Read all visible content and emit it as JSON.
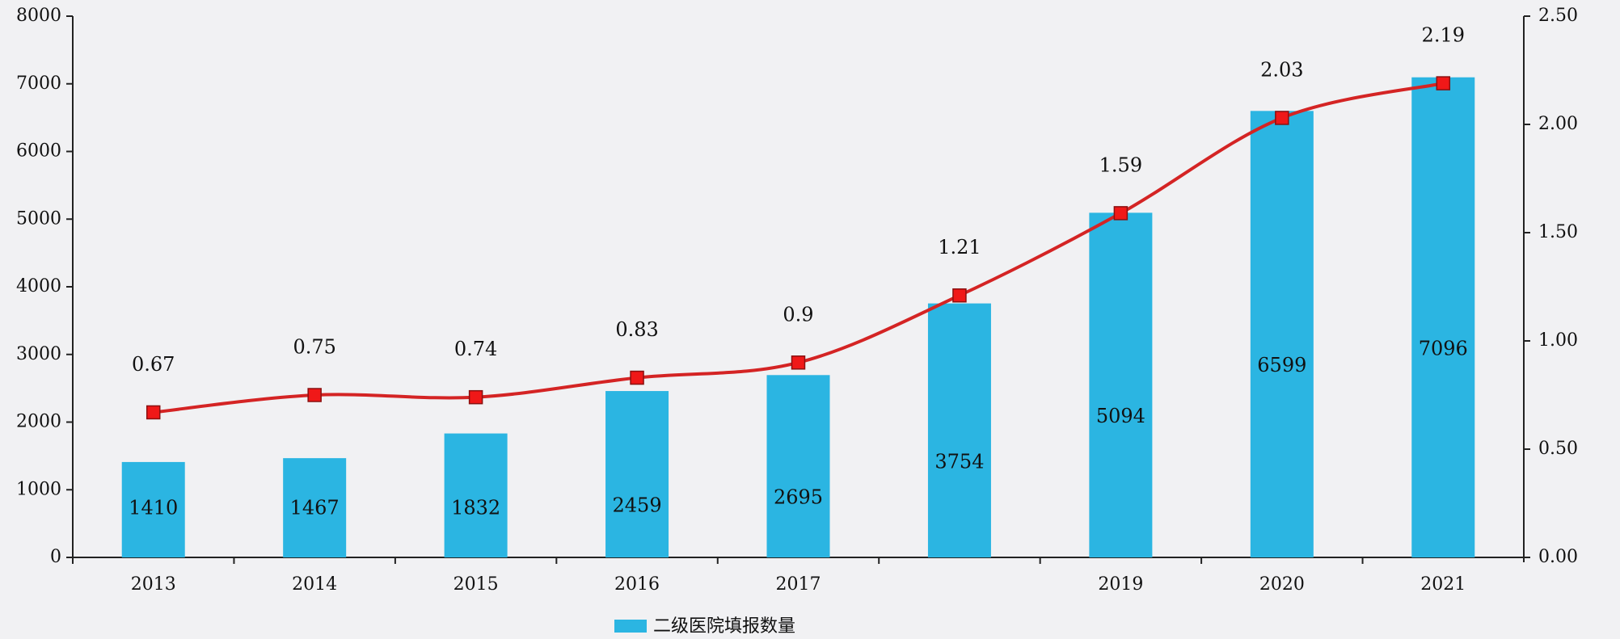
{
  "chart_data": {
    "type": "bar",
    "categories": [
      "2013",
      "2014",
      "2015",
      "2016",
      "2017",
      null,
      "2019",
      "2020",
      "2021"
    ],
    "series": [
      {
        "name": "二级医院填报数量",
        "type": "bar",
        "color": "#2bb5e2",
        "values": [
          1410,
          1467,
          1832,
          2459,
          2695,
          3754,
          5094,
          6599,
          7096
        ]
      },
      {
        "type": "line",
        "axis": "y2",
        "color": "#d42424",
        "values": [
          0.67,
          0.75,
          0.74,
          0.83,
          0.9,
          1.21,
          1.59,
          2.03,
          2.19
        ]
      }
    ],
    "ylim": [
      0,
      8000
    ],
    "yticks": [
      0,
      1000,
      2000,
      3000,
      4000,
      5000,
      6000,
      7000,
      8000
    ],
    "y2lim": [
      0,
      2.5
    ],
    "y2ticks": [
      {
        "value": 0,
        "label": "0.00"
      },
      {
        "value": 0.5,
        "label": "0.50"
      },
      {
        "value": 1,
        "label": "1.00"
      },
      {
        "value": 1.5,
        "label": "1.50"
      },
      {
        "value": 2,
        "label": "2.00"
      },
      {
        "value": 2.5,
        "label": "2.50"
      }
    ],
    "legend": "bottom"
  }
}
